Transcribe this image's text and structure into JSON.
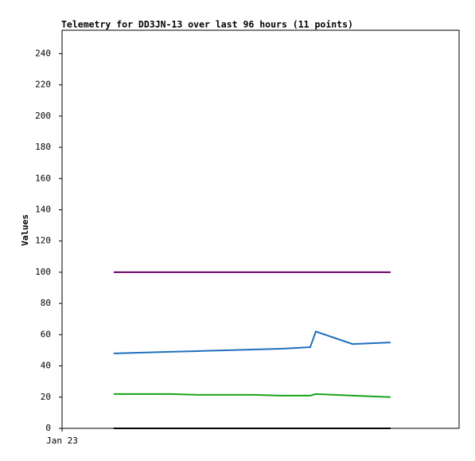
{
  "chart_data": {
    "type": "line",
    "title": "Telemetry for DD3JN-13 over last 96 hours (11 points)",
    "y_label": "Values",
    "x": [
      15.6,
      24.1,
      32.5,
      40.9,
      49.3,
      57.7,
      66.1,
      75.0,
      76.7,
      87.8,
      99.3
    ],
    "xlim": [
      0,
      120
    ],
    "xticks": [
      {
        "value": 0,
        "label": "Jan 23"
      }
    ],
    "ylim": [
      0,
      255
    ],
    "yticks": [
      0,
      20,
      40,
      60,
      80,
      100,
      120,
      140,
      160,
      180,
      200,
      220,
      240
    ],
    "series": [
      {
        "color": "#660066",
        "values": [
          100,
          100,
          100,
          100,
          100,
          100,
          100,
          100,
          100,
          100,
          100
        ]
      },
      {
        "color": "#1f6fbd",
        "values": [
          48,
          48.5,
          49,
          49.5,
          50,
          50.5,
          51,
          52,
          62,
          54,
          55
        ]
      },
      {
        "color": "#18a318",
        "values": [
          22,
          22,
          22,
          21.5,
          21.5,
          21.5,
          21,
          21,
          22,
          21,
          20
        ]
      },
      {
        "color": "#000000",
        "values": [
          0,
          0,
          0,
          0,
          0,
          0,
          0,
          0,
          0,
          0,
          0
        ]
      }
    ]
  }
}
